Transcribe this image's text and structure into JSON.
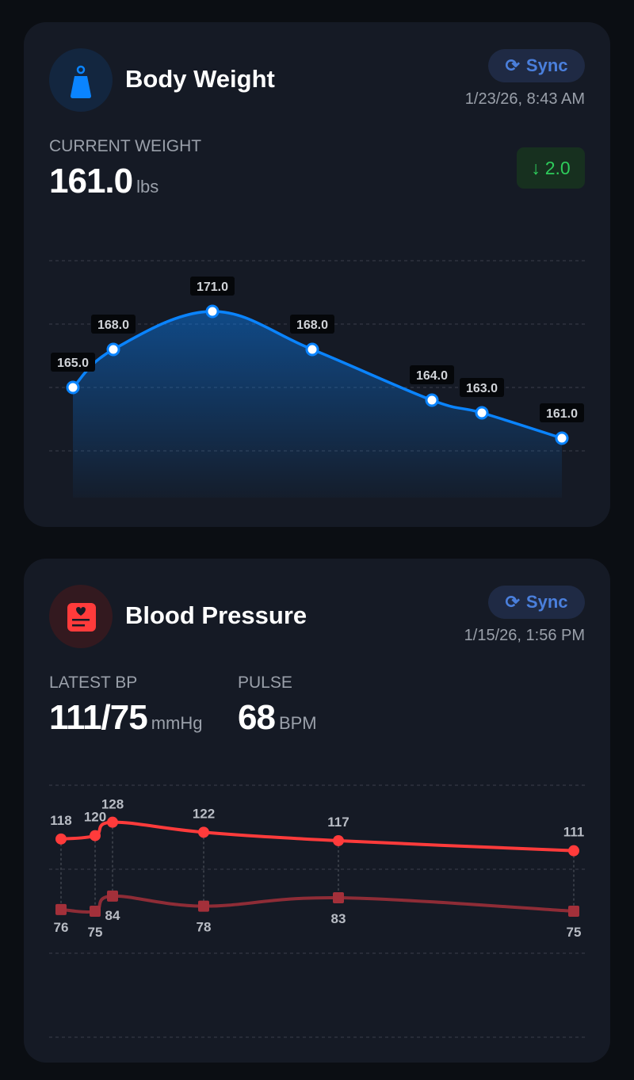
{
  "weight": {
    "title": "Body Weight",
    "icon": "weight-icon",
    "sync_label": "Sync",
    "date": "1/23/26, 8:43 AM",
    "current_label": "CURRENT WEIGHT",
    "current_value": "161.0",
    "unit": "lbs",
    "delta": "2.0",
    "delta_direction": "down",
    "accent": "#0a84ff",
    "delta_color": "#2ecc5b"
  },
  "bp": {
    "title": "Blood Pressure",
    "icon": "heart-card-icon",
    "sync_label": "Sync",
    "date": "1/15/26, 1:56 PM",
    "latest_label": "LATEST BP",
    "latest_value": "111/75",
    "latest_unit": "mmHg",
    "pulse_label": "PULSE",
    "pulse_value": "68",
    "pulse_unit": "BPM",
    "accent": "#ff3b3b"
  },
  "chart_data": [
    {
      "type": "area",
      "series": [
        {
          "values": [
            165.0,
            168.0,
            171.0,
            168.0,
            164.0,
            163.0,
            161.0
          ]
        }
      ],
      "labels": [
        "165.0",
        "168.0",
        "171.0",
        "168.0",
        "164.0",
        "163.0",
        "161.0"
      ],
      "ylim": [
        160,
        175
      ],
      "grid": true,
      "color": "#0a84ff"
    },
    {
      "type": "line",
      "series": [
        {
          "values": [
            118,
            120,
            128,
            122,
            117,
            111
          ],
          "color": "#ff3b3b"
        },
        {
          "values": [
            76,
            75,
            84,
            78,
            83,
            75
          ],
          "color": "#a3303a"
        }
      ],
      "ylim": [
        0,
        150
      ],
      "grid": true
    }
  ]
}
